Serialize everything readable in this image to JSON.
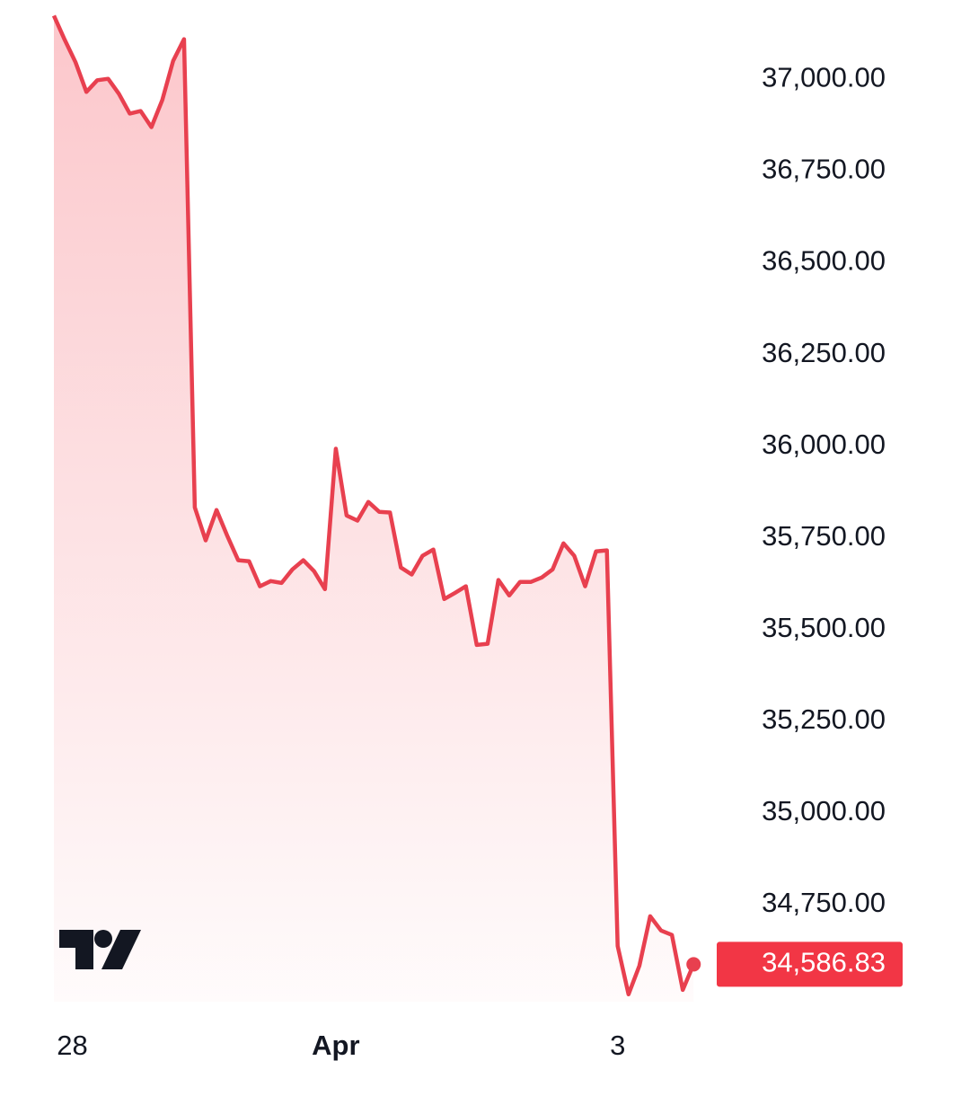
{
  "chart_data": {
    "type": "line",
    "x": [
      0,
      1,
      2,
      3,
      4,
      5,
      6,
      7,
      8,
      9,
      10,
      11,
      12,
      13,
      14,
      15,
      16,
      17,
      18,
      19,
      20,
      21,
      22,
      23,
      24,
      25,
      26,
      27,
      28,
      29,
      30,
      31,
      32,
      33,
      34,
      35,
      36,
      37,
      38,
      39,
      40,
      41,
      42,
      43,
      44,
      45,
      46,
      47,
      48,
      49,
      50,
      51,
      52,
      53,
      54,
      55,
      56,
      57,
      58,
      59
    ],
    "series": [
      {
        "color": "#e8404f",
        "values": [
          37174,
          37108,
          37047,
          36966,
          36998,
          37002,
          36961,
          36907,
          36914,
          36870,
          36944,
          37051,
          37110,
          35833,
          35743,
          35826,
          35755,
          35689,
          35686,
          35618,
          35632,
          35627,
          35664,
          35689,
          35659,
          35610,
          35993,
          35811,
          35797,
          35848,
          35821,
          35819,
          35669,
          35650,
          35701,
          35718,
          35583,
          35600,
          35618,
          35458,
          35461,
          35635,
          35593,
          35630,
          35630,
          35642,
          35664,
          35735,
          35701,
          35618,
          35713,
          35716,
          34637,
          34505,
          34583,
          34718,
          34679,
          34667,
          34517,
          34586.83
        ],
        "value_labels": [
          null,
          null,
          null,
          null,
          null,
          null,
          null,
          null,
          null,
          null,
          null,
          null,
          null,
          null,
          null,
          null,
          null,
          null,
          null,
          null,
          null,
          null,
          null,
          null,
          null,
          null,
          null,
          null,
          null,
          null,
          null,
          null,
          null,
          null,
          null,
          null,
          null,
          null,
          null,
          null,
          null,
          null,
          null,
          null,
          null,
          null,
          null,
          null,
          null,
          null,
          null,
          null,
          null,
          null,
          null,
          null,
          null,
          null,
          null,
          "34,586.83"
        ]
      }
    ],
    "xlim": [
      0,
      61.3
    ],
    "xticks": [
      {
        "value": 1.7,
        "label": "28"
      },
      {
        "value": 26,
        "label": "Apr"
      },
      {
        "value": 52,
        "label": "3"
      }
    ],
    "ylim": [
      34485,
      37180
    ],
    "yticks": [
      {
        "value": 34750,
        "label": "34,750.00"
      },
      {
        "value": 35000,
        "label": "35,000.00"
      },
      {
        "value": 35250,
        "label": "35,250.00"
      },
      {
        "value": 35500,
        "label": "35,500.00"
      },
      {
        "value": 35750,
        "label": "35,750.00"
      },
      {
        "value": 36000,
        "label": "36,000.00"
      },
      {
        "value": 36250,
        "label": "36,250.00"
      },
      {
        "value": 36500,
        "label": "36,500.00"
      },
      {
        "value": 36750,
        "label": "36,750.00"
      },
      {
        "value": 37000,
        "label": "37,000.00"
      }
    ],
    "grid": false,
    "price_box_color": "#f23645"
  }
}
